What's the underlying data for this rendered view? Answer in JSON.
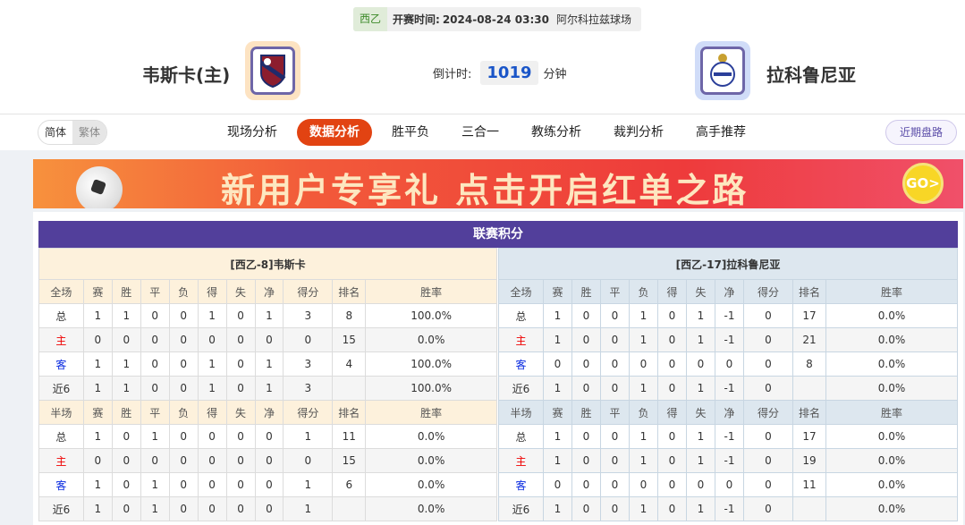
{
  "match": {
    "league": "西乙",
    "time_label": "开赛时间:",
    "time": "2024-08-24 03:30",
    "venue": "阿尔科拉兹球场"
  },
  "home": {
    "name": "韦斯卡(主)",
    "logo_color": "#fde3c2"
  },
  "away": {
    "name": "拉科鲁尼亚",
    "logo_color": "#d0dcf8"
  },
  "countdown": {
    "label": "倒计时:",
    "value": "1019",
    "unit": "分钟"
  },
  "lang": [
    "简体",
    "繁体"
  ],
  "tabs": [
    "现场分析",
    "数据分析",
    "胜平负",
    "三合一",
    "教练分析",
    "裁判分析",
    "高手推荐"
  ],
  "active_tab": "数据分析",
  "recent_button": "近期盘路",
  "banner": {
    "text": "新用户专享礼  点击开启红单之路",
    "go": "GO>"
  },
  "standings": {
    "title": "联赛积分",
    "columns": [
      "赛",
      "胜",
      "平",
      "负",
      "得",
      "失",
      "净",
      "得分",
      "排名",
      "胜率"
    ],
    "full_label": "全场",
    "half_label": "半场",
    "home": {
      "header": "[西乙-8]韦斯卡",
      "full": [
        [
          "总",
          "1",
          "1",
          "0",
          "0",
          "1",
          "0",
          "1",
          "3",
          "8",
          "100.0%"
        ],
        [
          "主",
          "0",
          "0",
          "0",
          "0",
          "0",
          "0",
          "0",
          "0",
          "15",
          "0.0%"
        ],
        [
          "客",
          "1",
          "1",
          "0",
          "0",
          "1",
          "0",
          "1",
          "3",
          "4",
          "100.0%"
        ],
        [
          "近6",
          "1",
          "1",
          "0",
          "0",
          "1",
          "0",
          "1",
          "3",
          "",
          "100.0%"
        ]
      ],
      "half": [
        [
          "总",
          "1",
          "0",
          "1",
          "0",
          "0",
          "0",
          "0",
          "1",
          "11",
          "0.0%"
        ],
        [
          "主",
          "0",
          "0",
          "0",
          "0",
          "0",
          "0",
          "0",
          "0",
          "15",
          "0.0%"
        ],
        [
          "客",
          "1",
          "0",
          "1",
          "0",
          "0",
          "0",
          "0",
          "1",
          "6",
          "0.0%"
        ],
        [
          "近6",
          "1",
          "0",
          "1",
          "0",
          "0",
          "0",
          "0",
          "1",
          "",
          "0.0%"
        ]
      ]
    },
    "away": {
      "header": "[西乙-17]拉科鲁尼亚",
      "full": [
        [
          "总",
          "1",
          "0",
          "0",
          "1",
          "0",
          "1",
          "-1",
          "0",
          "17",
          "0.0%"
        ],
        [
          "主",
          "1",
          "0",
          "0",
          "1",
          "0",
          "1",
          "-1",
          "0",
          "21",
          "0.0%"
        ],
        [
          "客",
          "0",
          "0",
          "0",
          "0",
          "0",
          "0",
          "0",
          "0",
          "8",
          "0.0%"
        ],
        [
          "近6",
          "1",
          "0",
          "0",
          "1",
          "0",
          "1",
          "-1",
          "0",
          "",
          "0.0%"
        ]
      ],
      "half": [
        [
          "总",
          "1",
          "0",
          "0",
          "1",
          "0",
          "1",
          "-1",
          "0",
          "17",
          "0.0%"
        ],
        [
          "主",
          "1",
          "0",
          "0",
          "1",
          "0",
          "1",
          "-1",
          "0",
          "19",
          "0.0%"
        ],
        [
          "客",
          "0",
          "0",
          "0",
          "0",
          "0",
          "0",
          "0",
          "0",
          "11",
          "0.0%"
        ],
        [
          "近6",
          "1",
          "0",
          "0",
          "1",
          "0",
          "1",
          "-1",
          "0",
          "",
          "0.0%"
        ]
      ]
    }
  }
}
